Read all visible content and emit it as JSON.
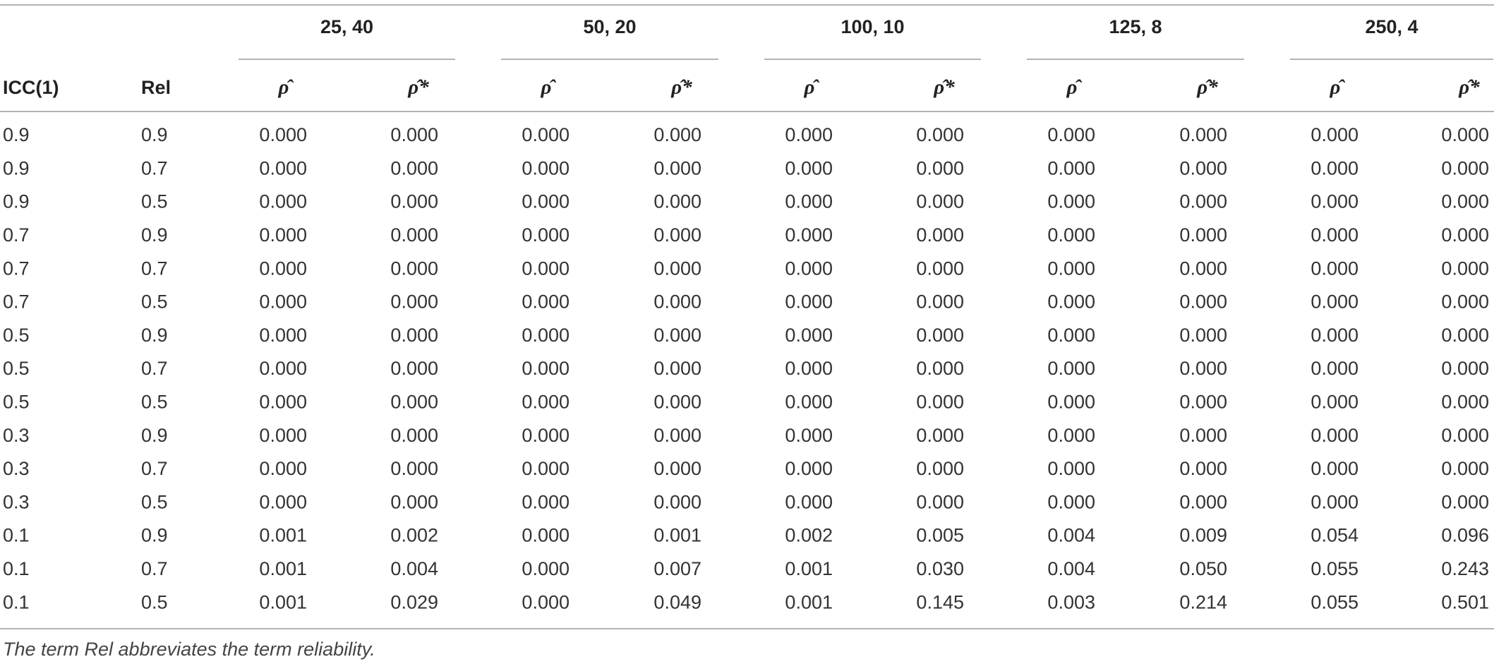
{
  "table": {
    "groups": [
      "25, 40",
      "50, 20",
      "100, 10",
      "125, 8",
      "250, 4"
    ],
    "columns": [
      "ICC(1)",
      "Rel",
      "ρ̂",
      "ρ̂*",
      "ρ̂",
      "ρ̂*",
      "ρ̂",
      "ρ̂*",
      "ρ̂",
      "ρ̂*",
      "ρ̂",
      "ρ̂*"
    ],
    "rows": [
      [
        "0.9",
        "0.9",
        "0.000",
        "0.000",
        "0.000",
        "0.000",
        "0.000",
        "0.000",
        "0.000",
        "0.000",
        "0.000",
        "0.000"
      ],
      [
        "0.9",
        "0.7",
        "0.000",
        "0.000",
        "0.000",
        "0.000",
        "0.000",
        "0.000",
        "0.000",
        "0.000",
        "0.000",
        "0.000"
      ],
      [
        "0.9",
        "0.5",
        "0.000",
        "0.000",
        "0.000",
        "0.000",
        "0.000",
        "0.000",
        "0.000",
        "0.000",
        "0.000",
        "0.000"
      ],
      [
        "0.7",
        "0.9",
        "0.000",
        "0.000",
        "0.000",
        "0.000",
        "0.000",
        "0.000",
        "0.000",
        "0.000",
        "0.000",
        "0.000"
      ],
      [
        "0.7",
        "0.7",
        "0.000",
        "0.000",
        "0.000",
        "0.000",
        "0.000",
        "0.000",
        "0.000",
        "0.000",
        "0.000",
        "0.000"
      ],
      [
        "0.7",
        "0.5",
        "0.000",
        "0.000",
        "0.000",
        "0.000",
        "0.000",
        "0.000",
        "0.000",
        "0.000",
        "0.000",
        "0.000"
      ],
      [
        "0.5",
        "0.9",
        "0.000",
        "0.000",
        "0.000",
        "0.000",
        "0.000",
        "0.000",
        "0.000",
        "0.000",
        "0.000",
        "0.000"
      ],
      [
        "0.5",
        "0.7",
        "0.000",
        "0.000",
        "0.000",
        "0.000",
        "0.000",
        "0.000",
        "0.000",
        "0.000",
        "0.000",
        "0.000"
      ],
      [
        "0.5",
        "0.5",
        "0.000",
        "0.000",
        "0.000",
        "0.000",
        "0.000",
        "0.000",
        "0.000",
        "0.000",
        "0.000",
        "0.000"
      ],
      [
        "0.3",
        "0.9",
        "0.000",
        "0.000",
        "0.000",
        "0.000",
        "0.000",
        "0.000",
        "0.000",
        "0.000",
        "0.000",
        "0.000"
      ],
      [
        "0.3",
        "0.7",
        "0.000",
        "0.000",
        "0.000",
        "0.000",
        "0.000",
        "0.000",
        "0.000",
        "0.000",
        "0.000",
        "0.000"
      ],
      [
        "0.3",
        "0.5",
        "0.000",
        "0.000",
        "0.000",
        "0.000",
        "0.000",
        "0.000",
        "0.000",
        "0.000",
        "0.000",
        "0.000"
      ],
      [
        "0.1",
        "0.9",
        "0.001",
        "0.002",
        "0.000",
        "0.001",
        "0.002",
        "0.005",
        "0.004",
        "0.009",
        "0.054",
        "0.096"
      ],
      [
        "0.1",
        "0.7",
        "0.001",
        "0.004",
        "0.000",
        "0.007",
        "0.001",
        "0.030",
        "0.004",
        "0.050",
        "0.055",
        "0.243"
      ],
      [
        "0.1",
        "0.5",
        "0.001",
        "0.029",
        "0.000",
        "0.049",
        "0.001",
        "0.145",
        "0.003",
        "0.214",
        "0.055",
        "0.501"
      ]
    ],
    "footnote": "The term Rel abbreviates the term reliability."
  }
}
